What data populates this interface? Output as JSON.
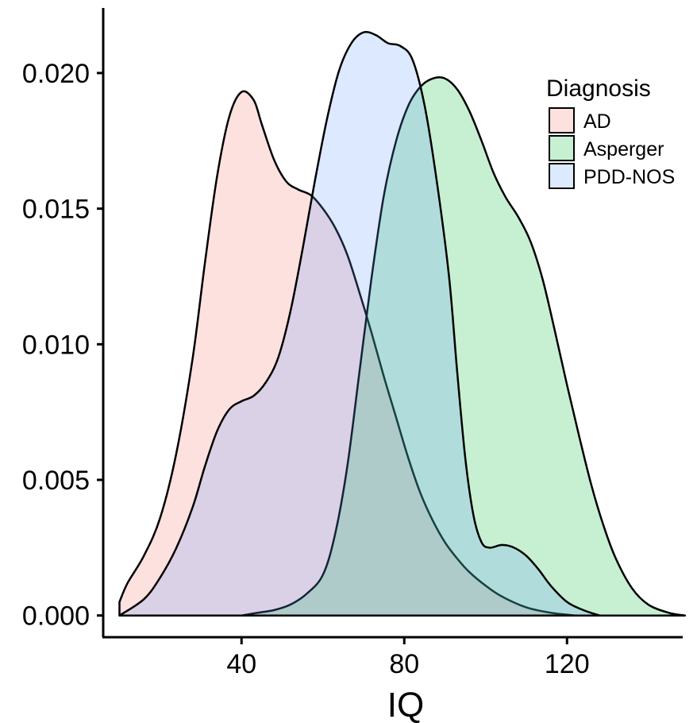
{
  "chart_data": {
    "type": "area",
    "title": "",
    "xlabel": "IQ",
    "ylabel": "",
    "xlim": [
      6,
      150
    ],
    "ylim": [
      -0.0008,
      0.0224
    ],
    "x_ticks": [
      40,
      80,
      120
    ],
    "x_tick_labels": [
      "40",
      "80",
      "120"
    ],
    "y_ticks": [
      0,
      0.005,
      0.01,
      0.015,
      0.02
    ],
    "y_tick_labels": [
      "0.000",
      "0.005",
      "0.010",
      "0.015",
      "0.020"
    ],
    "grid": false,
    "legend": {
      "title": "Diagnosis",
      "placement": "top-right"
    },
    "series": [
      {
        "name": "AD",
        "color": "#F8766D",
        "points": [
          [
            10,
            0.0005
          ],
          [
            12,
            0.0012
          ],
          [
            16,
            0.0022
          ],
          [
            20,
            0.0036
          ],
          [
            24,
            0.006
          ],
          [
            28,
            0.0095
          ],
          [
            31,
            0.013
          ],
          [
            34,
            0.0162
          ],
          [
            37,
            0.0184
          ],
          [
            40,
            0.0193
          ],
          [
            43,
            0.019
          ],
          [
            45,
            0.0181
          ],
          [
            48,
            0.0168
          ],
          [
            51,
            0.016
          ],
          [
            54,
            0.0157
          ],
          [
            57,
            0.0155
          ],
          [
            60,
            0.015
          ],
          [
            63,
            0.0143
          ],
          [
            66,
            0.0133
          ],
          [
            69,
            0.0119
          ],
          [
            72,
            0.0104
          ],
          [
            75,
            0.0088
          ],
          [
            78,
            0.0073
          ],
          [
            81,
            0.0058
          ],
          [
            84,
            0.0045
          ],
          [
            87,
            0.0035
          ],
          [
            90,
            0.0027
          ],
          [
            93,
            0.0021
          ],
          [
            96,
            0.0016
          ],
          [
            100,
            0.0011
          ],
          [
            104,
            0.0007
          ],
          [
            110,
            0.0003
          ],
          [
            116,
            0.0001
          ],
          [
            122,
            0
          ]
        ]
      },
      {
        "name": "Asperger",
        "color": "#00BA38",
        "points": [
          [
            40,
            0
          ],
          [
            44,
            0.0001
          ],
          [
            48,
            0.0002
          ],
          [
            52,
            0.0004
          ],
          [
            56,
            0.0008
          ],
          [
            60,
            0.0015
          ],
          [
            63,
            0.003
          ],
          [
            66,
            0.0055
          ],
          [
            69,
            0.009
          ],
          [
            72,
            0.0125
          ],
          [
            75,
            0.0155
          ],
          [
            78,
            0.0175
          ],
          [
            81,
            0.0188
          ],
          [
            84,
            0.0195
          ],
          [
            87,
            0.0198
          ],
          [
            90,
            0.0198
          ],
          [
            93,
            0.0194
          ],
          [
            96,
            0.0186
          ],
          [
            99,
            0.0175
          ],
          [
            102,
            0.0163
          ],
          [
            105,
            0.0154
          ],
          [
            108,
            0.0147
          ],
          [
            111,
            0.0138
          ],
          [
            114,
            0.0124
          ],
          [
            117,
            0.0105
          ],
          [
            120,
            0.0085
          ],
          [
            123,
            0.0066
          ],
          [
            126,
            0.0048
          ],
          [
            129,
            0.0033
          ],
          [
            132,
            0.0021
          ],
          [
            136,
            0.001
          ],
          [
            140,
            0.0004
          ],
          [
            145,
            0.0001
          ],
          [
            149,
            0
          ]
        ]
      },
      {
        "name": "PDD-NOS",
        "color": "#619CFF",
        "points": [
          [
            10,
            0
          ],
          [
            16,
            0.0006
          ],
          [
            20,
            0.0014
          ],
          [
            24,
            0.0025
          ],
          [
            28,
            0.004
          ],
          [
            31,
            0.0055
          ],
          [
            34,
            0.0068
          ],
          [
            37,
            0.0076
          ],
          [
            40,
            0.0079
          ],
          [
            43,
            0.0081
          ],
          [
            46,
            0.0086
          ],
          [
            49,
            0.0095
          ],
          [
            52,
            0.0112
          ],
          [
            55,
            0.0135
          ],
          [
            58,
            0.016
          ],
          [
            61,
            0.0183
          ],
          [
            64,
            0.0201
          ],
          [
            67,
            0.0211
          ],
          [
            70,
            0.0215
          ],
          [
            73,
            0.0214
          ],
          [
            76,
            0.0211
          ],
          [
            79,
            0.021
          ],
          [
            82,
            0.0205
          ],
          [
            85,
            0.0188
          ],
          [
            88,
            0.016
          ],
          [
            91,
            0.0125
          ],
          [
            93,
            0.009
          ],
          [
            95,
            0.0058
          ],
          [
            97,
            0.0037
          ],
          [
            99,
            0.0027
          ],
          [
            101,
            0.0025
          ],
          [
            104,
            0.0026
          ],
          [
            107,
            0.0025
          ],
          [
            110,
            0.0022
          ],
          [
            113,
            0.0017
          ],
          [
            116,
            0.0011
          ],
          [
            120,
            0.0005
          ],
          [
            124,
            0.0002
          ],
          [
            128,
            0
          ]
        ]
      }
    ]
  }
}
